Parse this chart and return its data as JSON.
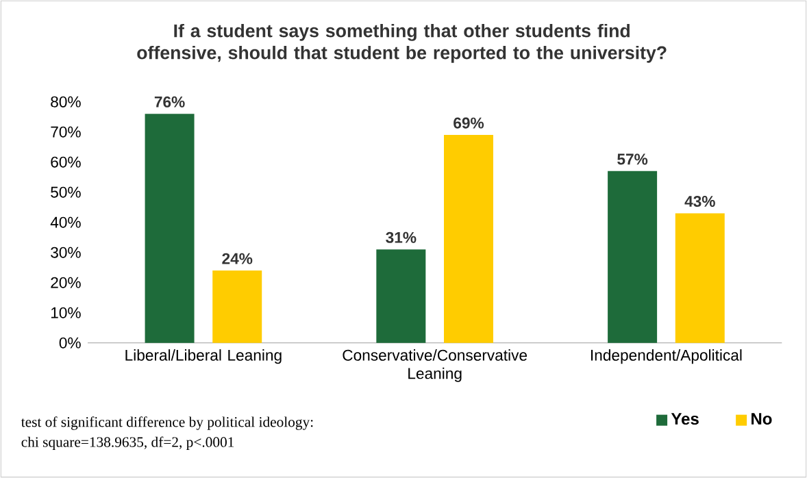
{
  "chart_data": {
    "type": "bar",
    "title": "If a student says something that other students find offensive, should that student be reported to the university?",
    "categories": [
      "Liberal/Liberal Leaning",
      "Conservative/Conservative Leaning",
      "Independent/Apolitical"
    ],
    "series": [
      {
        "name": "Yes",
        "color": "#1e6b3a",
        "values": [
          76,
          31,
          57
        ],
        "value_labels": [
          "76%",
          "31%",
          "57%"
        ]
      },
      {
        "name": "No",
        "color": "#ffcc00",
        "values": [
          24,
          69,
          43
        ],
        "value_labels": [
          "24%",
          "69%",
          "43%"
        ]
      }
    ],
    "ylim": [
      0,
      80
    ],
    "yticks": [
      {
        "value": 0,
        "label": "0%"
      },
      {
        "value": 10,
        "label": "10%"
      },
      {
        "value": 20,
        "label": "20%"
      },
      {
        "value": 30,
        "label": "30%"
      },
      {
        "value": 40,
        "label": "40%"
      },
      {
        "value": 50,
        "label": "50%"
      },
      {
        "value": 60,
        "label": "60%"
      },
      {
        "value": 70,
        "label": "70%"
      },
      {
        "value": 80,
        "label": "80%"
      }
    ],
    "grid": false,
    "legend": "bottom right",
    "annotations": [
      "test of significant difference by political ideology:",
      "chi square=138.9635, df=2, p<.0001"
    ]
  }
}
